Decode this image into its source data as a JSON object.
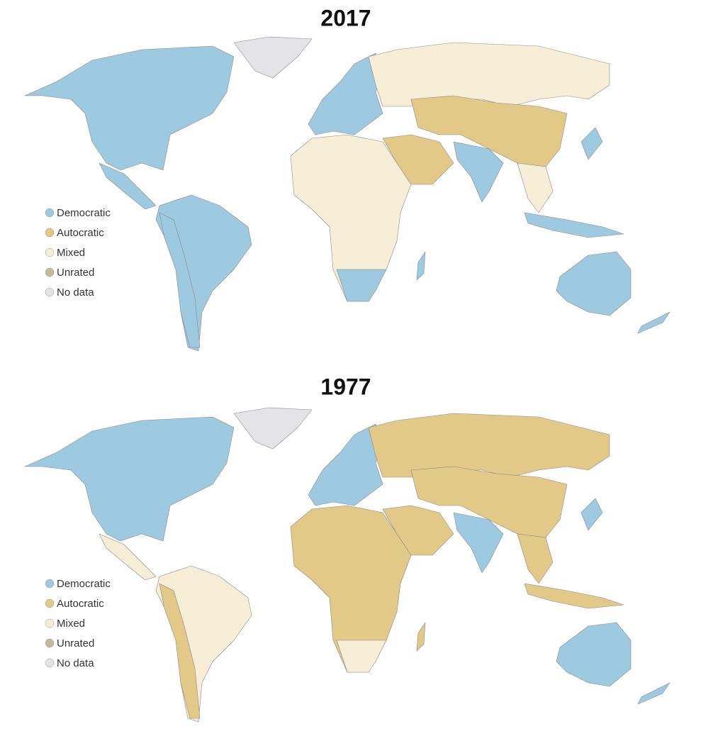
{
  "maps": [
    {
      "title": "2017",
      "legend": [
        {
          "label": "Democratic",
          "color": "#9ecae1"
        },
        {
          "label": "Autocratic",
          "color": "#e3c987"
        },
        {
          "label": "Mixed",
          "color": "#f6eed6"
        },
        {
          "label": "Unrated",
          "color": "#c4b99a"
        },
        {
          "label": "No data",
          "color": "#e4e4e6"
        }
      ]
    },
    {
      "title": "1977",
      "legend": [
        {
          "label": "Democratic",
          "color": "#9ecae1"
        },
        {
          "label": "Autocratic",
          "color": "#e3c987"
        },
        {
          "label": "Mixed",
          "color": "#f6eed6"
        },
        {
          "label": "Unrated",
          "color": "#c4b99a"
        },
        {
          "label": "No data",
          "color": "#e4e4e6"
        }
      ]
    }
  ]
}
